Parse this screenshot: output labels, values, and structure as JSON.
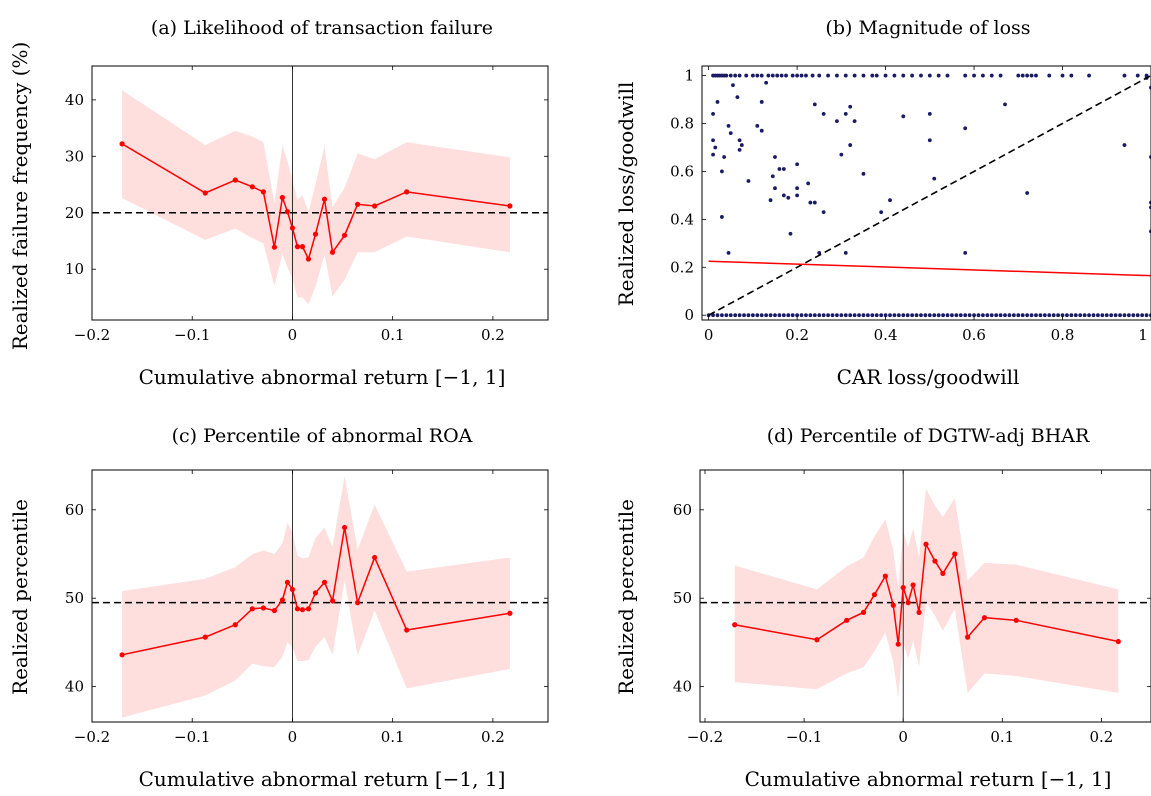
{
  "chart_data": [
    {
      "type": "line",
      "title": "(a) Likelihood of transaction failure",
      "xlabel": "Cumulative abnormal return [−1, 1]",
      "ylabel": "Realized failure frequency (%)",
      "xlim": [
        -0.2,
        0.255
      ],
      "ylim": [
        1,
        46
      ],
      "xticks": [
        -0.2,
        -0.1,
        0,
        0.1,
        0.2
      ],
      "xtick_labels": [
        "−0.2",
        "−0.1",
        "0",
        "0.1",
        "0.2"
      ],
      "yticks": [
        10,
        20,
        30,
        40
      ],
      "ytick_labels": [
        "10",
        "20",
        "30",
        "40"
      ],
      "hline": 20,
      "vline": 0,
      "series": [
        {
          "x": [
            -0.17,
            -0.087,
            -0.057,
            -0.04,
            -0.029,
            -0.018,
            -0.01,
            -0.005,
            0.0,
            0.005,
            0.01,
            0.016,
            0.023,
            0.032,
            0.04,
            0.052,
            0.065,
            0.082,
            0.114,
            0.217
          ],
          "y": [
            32.2,
            23.5,
            25.8,
            24.6,
            23.7,
            13.9,
            22.7,
            20.2,
            17.3,
            14.0,
            14.0,
            11.8,
            16.2,
            22.4,
            13.0,
            16.0,
            21.5,
            21.2,
            23.7,
            21.2
          ],
          "lower": [
            22.6,
            15.2,
            17.2,
            15.5,
            14.6,
            7.0,
            12.7,
            10.3,
            8.3,
            5.0,
            5.0,
            3.8,
            6.9,
            12.6,
            5.2,
            8.1,
            13.0,
            13.0,
            15.8,
            13.0
          ],
          "upper": [
            41.7,
            32.0,
            34.5,
            33.5,
            32.5,
            21.7,
            31.9,
            29.2,
            25.8,
            22.3,
            23.1,
            20.2,
            25.0,
            31.8,
            21.0,
            24.4,
            30.5,
            29.5,
            32.5,
            29.8
          ]
        }
      ]
    },
    {
      "type": "scatter",
      "title": "(b) Magnitude of loss",
      "xlabel": "CAR loss/goodwill",
      "ylabel": "Realized loss/goodwill",
      "xlim": [
        -0.015,
        1.0
      ],
      "ylim": [
        -0.02,
        1.04
      ],
      "xticks": [
        0,
        0.2,
        0.4,
        0.6,
        0.8,
        1
      ],
      "xtick_labels": [
        "0",
        "0.2",
        "0.4",
        "0.6",
        "0.8",
        "1"
      ],
      "yticks": [
        0,
        0.2,
        0.4,
        0.6,
        0.8,
        1
      ],
      "ytick_labels": [
        "0",
        "0.2",
        "0.4",
        "0.6",
        "0.8",
        "1"
      ],
      "reference_line": {
        "from": [
          0,
          0
        ],
        "to": [
          1,
          1
        ],
        "style": "dashed"
      },
      "fit_line": {
        "from": [
          0,
          0.225
        ],
        "to": [
          1,
          0.165
        ]
      },
      "points_top_x": [
        0.01,
        0.015,
        0.02,
        0.025,
        0.03,
        0.035,
        0.04,
        0.05,
        0.06,
        0.07,
        0.085,
        0.1,
        0.11,
        0.12,
        0.135,
        0.145,
        0.155,
        0.165,
        0.175,
        0.19,
        0.2,
        0.21,
        0.22,
        0.235,
        0.25,
        0.27,
        0.29,
        0.31,
        0.33,
        0.35,
        0.37,
        0.38,
        0.4,
        0.42,
        0.44,
        0.46,
        0.48,
        0.5,
        0.52,
        0.54,
        0.58,
        0.6,
        0.62,
        0.64,
        0.66,
        0.7,
        0.71,
        0.72,
        0.73,
        0.74,
        0.77,
        0.8,
        0.82,
        0.86,
        0.94,
        0.97,
        0.99
      ],
      "points_bottom_x": [
        0,
        0.02,
        0.04,
        0.06,
        0.08,
        0.1,
        0.12,
        0.14,
        0.16,
        0.18,
        0.2,
        0.22,
        0.24,
        0.26,
        0.28,
        0.3,
        0.32,
        0.34,
        0.36,
        0.38,
        0.4,
        0.42,
        0.44,
        0.46,
        0.48,
        0.5,
        0.52,
        0.54,
        0.56,
        0.58,
        0.6,
        0.62,
        0.64,
        0.66,
        0.68,
        0.7,
        0.72,
        0.74,
        0.76,
        0.78,
        0.8,
        0.82,
        0.84,
        0.86,
        0.88,
        0.9,
        0.92,
        0.94,
        0.96,
        0.98,
        1.0,
        0.01,
        0.03,
        0.05,
        0.07,
        0.09,
        0.11,
        0.13,
        0.15,
        0.17,
        0.19,
        0.21,
        0.23,
        0.25,
        0.27,
        0.29,
        0.31,
        0.33,
        0.35,
        0.37,
        0.39,
        0.41,
        0.43,
        0.45,
        0.47,
        0.49,
        0.51,
        0.53,
        0.55,
        0.57,
        0.59,
        0.61,
        0.63,
        0.65,
        0.67,
        0.69,
        0.71,
        0.73,
        0.75,
        0.77,
        0.79,
        0.81,
        0.83,
        0.85,
        0.87,
        0.89,
        0.91,
        0.93,
        0.95,
        0.97,
        0.99
      ],
      "points_mid": [
        [
          0.01,
          0.84
        ],
        [
          0.01,
          0.73
        ],
        [
          0.015,
          0.7
        ],
        [
          0.01,
          0.67
        ],
        [
          0.02,
          0.89
        ],
        [
          0.03,
          0.6
        ],
        [
          0.03,
          0.41
        ],
        [
          0.035,
          0.66
        ],
        [
          0.045,
          0.79
        ],
        [
          0.05,
          0.76
        ],
        [
          0.045,
          0.26
        ],
        [
          0.055,
          0.96
        ],
        [
          0.065,
          0.91
        ],
        [
          0.07,
          0.73
        ],
        [
          0.07,
          0.69
        ],
        [
          0.075,
          0.71
        ],
        [
          0.09,
          0.56
        ],
        [
          0.11,
          0.79
        ],
        [
          0.12,
          0.77
        ],
        [
          0.12,
          0.89
        ],
        [
          0.13,
          0.97
        ],
        [
          0.14,
          0.48
        ],
        [
          0.145,
          0.58
        ],
        [
          0.15,
          0.53
        ],
        [
          0.15,
          0.66
        ],
        [
          0.16,
          0.61
        ],
        [
          0.17,
          0.61
        ],
        [
          0.17,
          0.5
        ],
        [
          0.18,
          0.49
        ],
        [
          0.185,
          0.34
        ],
        [
          0.2,
          0.53
        ],
        [
          0.2,
          0.5
        ],
        [
          0.2,
          0.63
        ],
        [
          0.225,
          0.55
        ],
        [
          0.23,
          0.47
        ],
        [
          0.24,
          0.88
        ],
        [
          0.24,
          0.47
        ],
        [
          0.25,
          0.26
        ],
        [
          0.26,
          0.84
        ],
        [
          0.26,
          0.43
        ],
        [
          0.29,
          0.81
        ],
        [
          0.3,
          0.67
        ],
        [
          0.31,
          0.26
        ],
        [
          0.31,
          0.84
        ],
        [
          0.32,
          0.87
        ],
        [
          0.32,
          0.71
        ],
        [
          0.33,
          0.81
        ],
        [
          0.35,
          0.59
        ],
        [
          0.39,
          0.43
        ],
        [
          0.41,
          0.48
        ],
        [
          0.44,
          0.83
        ],
        [
          0.5,
          0.84
        ],
        [
          0.5,
          0.73
        ],
        [
          0.51,
          0.57
        ],
        [
          0.58,
          0.26
        ],
        [
          0.58,
          0.78
        ],
        [
          0.67,
          0.88
        ],
        [
          0.72,
          0.51
        ],
        [
          0.94,
          0.71
        ],
        [
          0.99,
          0.99
        ],
        [
          1.0,
          0.95
        ],
        [
          1.0,
          0.66
        ],
        [
          1.0,
          0.47
        ],
        [
          1.0,
          0.45
        ],
        [
          1.0,
          0.35
        ]
      ]
    },
    {
      "type": "line",
      "title": "(c) Percentile of abnormal ROA",
      "xlabel": "Cumulative abnormal return [−1, 1]",
      "ylabel": "Realized percentile",
      "xlim": [
        -0.2,
        0.255
      ],
      "ylim": [
        36,
        64.5
      ],
      "xticks": [
        -0.2,
        -0.1,
        0,
        0.1,
        0.2
      ],
      "xtick_labels": [
        "−0.2",
        "−0.1",
        "0",
        "0.1",
        "0.2"
      ],
      "yticks": [
        40,
        50,
        60
      ],
      "ytick_labels": [
        "40",
        "50",
        "60"
      ],
      "hline": 49.5,
      "vline": 0,
      "series": [
        {
          "x": [
            -0.17,
            -0.087,
            -0.057,
            -0.04,
            -0.029,
            -0.018,
            -0.01,
            -0.005,
            0.0,
            0.005,
            0.01,
            0.016,
            0.023,
            0.032,
            0.04,
            0.052,
            0.065,
            0.082,
            0.114,
            0.217
          ],
          "y": [
            43.6,
            45.6,
            47.0,
            48.8,
            48.9,
            48.6,
            49.8,
            51.8,
            51.0,
            48.8,
            48.7,
            48.8,
            50.6,
            51.8,
            49.7,
            58.0,
            49.5,
            54.6,
            46.4,
            48.3
          ],
          "lower": [
            36.5,
            39.0,
            40.7,
            42.6,
            42.3,
            42.2,
            43.4,
            45.0,
            44.5,
            42.9,
            42.9,
            43.0,
            44.5,
            45.6,
            43.6,
            52.0,
            43.5,
            48.6,
            39.8,
            42.0
          ],
          "upper": [
            50.8,
            52.2,
            53.5,
            55.0,
            55.4,
            55.0,
            56.2,
            58.5,
            57.5,
            54.8,
            54.5,
            54.6,
            56.8,
            58.0,
            55.8,
            63.8,
            55.5,
            60.6,
            53.0,
            54.6
          ]
        }
      ]
    },
    {
      "type": "line",
      "title": "(d) Percentile of DGTW-adj BHAR",
      "xlabel": "Cumulative abnormal return [−1, 1]",
      "ylabel": "Realized percentile",
      "xlim": [
        -0.205,
        0.25
      ],
      "ylim": [
        36,
        64.5
      ],
      "xticks": [
        -0.2,
        -0.1,
        0,
        0.1,
        0.2
      ],
      "xtick_labels": [
        "−0.2",
        "−0.1",
        "0",
        "0.1",
        "0.2"
      ],
      "yticks": [
        40,
        50,
        60
      ],
      "ytick_labels": [
        "40",
        "50",
        "60"
      ],
      "hline": 49.5,
      "vline": 0,
      "series": [
        {
          "x": [
            -0.17,
            -0.087,
            -0.057,
            -0.04,
            -0.029,
            -0.018,
            -0.01,
            -0.005,
            0.0,
            0.005,
            0.01,
            0.016,
            0.023,
            0.032,
            0.04,
            0.052,
            0.065,
            0.082,
            0.114,
            0.217
          ],
          "y": [
            47.0,
            45.3,
            47.5,
            48.4,
            50.4,
            52.5,
            49.2,
            44.8,
            51.2,
            49.5,
            51.5,
            48.4,
            56.1,
            54.2,
            52.8,
            55.0,
            45.6,
            47.8,
            47.5,
            45.1
          ],
          "lower": [
            40.5,
            39.7,
            41.5,
            42.2,
            44.0,
            46.1,
            42.8,
            38.7,
            45.0,
            43.2,
            45.2,
            42.3,
            49.6,
            48.0,
            46.3,
            48.8,
            39.3,
            41.5,
            41.2,
            39.3
          ],
          "upper": [
            53.7,
            51.0,
            53.6,
            54.6,
            57.0,
            58.9,
            55.5,
            51.0,
            57.6,
            55.7,
            57.9,
            54.6,
            62.4,
            60.5,
            59.2,
            61.3,
            52.0,
            54.0,
            53.8,
            51.0
          ]
        }
      ]
    }
  ]
}
